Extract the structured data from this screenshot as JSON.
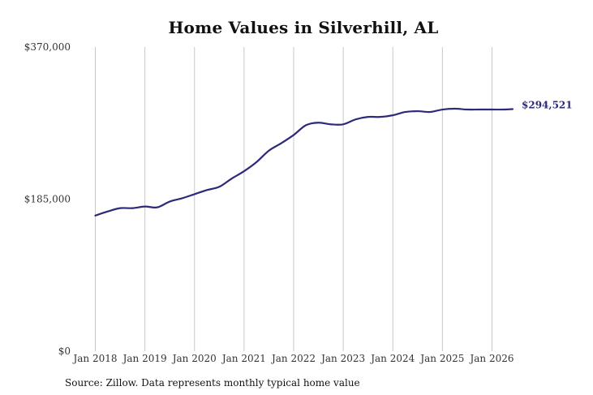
{
  "chart_data": {
    "type": "line",
    "title": "Home Values in Silverhill, AL",
    "xlabel": "",
    "ylabel": "",
    "ylim": [
      0,
      370000
    ],
    "y_ticks": [
      {
        "value": 0,
        "label": "$0"
      },
      {
        "value": 185000,
        "label": "$185,000"
      },
      {
        "value": 370000,
        "label": "$370,000"
      }
    ],
    "x_ticks": [
      {
        "value": "2018-01",
        "label": "Jan 2018"
      },
      {
        "value": "2019-01",
        "label": "Jan 2019"
      },
      {
        "value": "2020-01",
        "label": "Jan 2020"
      },
      {
        "value": "2021-01",
        "label": "Jan 2021"
      },
      {
        "value": "2022-01",
        "label": "Jan 2022"
      },
      {
        "value": "2023-01",
        "label": "Jan 2023"
      },
      {
        "value": "2024-01",
        "label": "Jan 2024"
      },
      {
        "value": "2025-01",
        "label": "Jan 2025"
      },
      {
        "value": "2026-01",
        "label": "Jan 2026"
      }
    ],
    "grid": "vertical",
    "line_color": "#2e2a7a",
    "series": [
      {
        "x": [
          "2018-01",
          "2018-04",
          "2018-07",
          "2018-10",
          "2019-01",
          "2019-04",
          "2019-07",
          "2019-10",
          "2020-01",
          "2020-04",
          "2020-07",
          "2020-10",
          "2021-01",
          "2021-04",
          "2021-07",
          "2021-10",
          "2022-01",
          "2022-04",
          "2022-07",
          "2022-10",
          "2023-01",
          "2023-04",
          "2023-07",
          "2023-10",
          "2024-01",
          "2024-04",
          "2024-07",
          "2024-10",
          "2025-01",
          "2025-04",
          "2025-07",
          "2025-10",
          "2026-01",
          "2026-04",
          "2026-06"
        ],
        "values": [
          165000,
          170000,
          174000,
          174000,
          176000,
          175000,
          182000,
          186000,
          191000,
          196000,
          200000,
          210000,
          219000,
          230000,
          244000,
          253000,
          263000,
          275000,
          278000,
          276000,
          276000,
          282000,
          285000,
          285000,
          287000,
          291000,
          292000,
          291000,
          294000,
          295000,
          294000,
          294000,
          294000,
          294000,
          294521
        ]
      }
    ],
    "last_value_label": "$294,521"
  },
  "footer": {
    "source": "Source: Zillow. Data represents monthly typical home value"
  }
}
